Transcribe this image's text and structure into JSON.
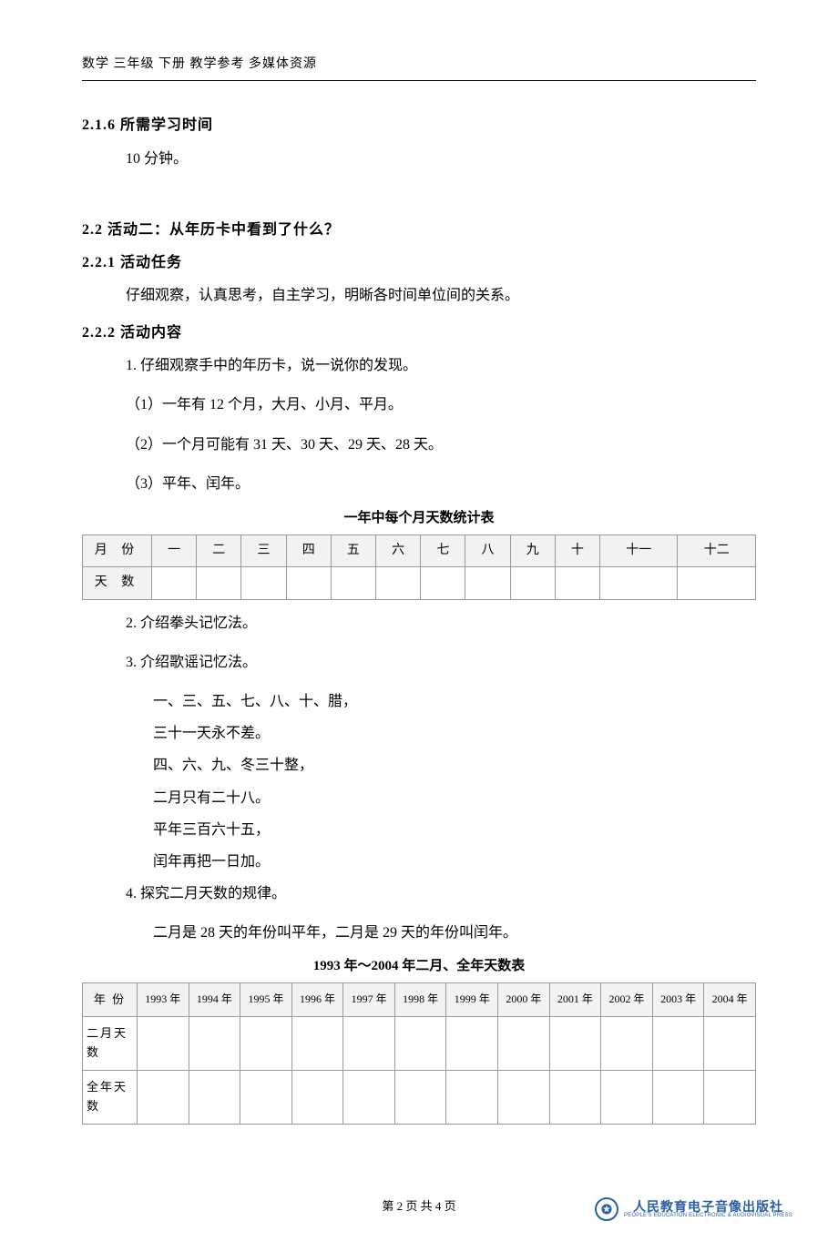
{
  "header": "数学 三年级 下册 教学参考 多媒体资源",
  "s216": {
    "title": "2.1.6 所需学习时间",
    "body": "10 分钟。"
  },
  "s22": {
    "title": "2.2 活动二：从年历卡中看到了什么？"
  },
  "s221": {
    "title": "2.2.1 活动任务",
    "body": "仔细观察，认真思考，自主学习，明晰各时间单位间的关系。"
  },
  "s222": {
    "title": "2.2.2 活动内容",
    "p1": "1. 仔细观察手中的年历卡，说一说你的发现。",
    "p1a": "（1）一年有 12 个月，大月、小月、平月。",
    "p1b": "（2）一个月可能有 31 天、30 天、29 天、28 天。",
    "p1c": "（3）平年、闰年。",
    "table1_title": "一年中每个月天数统计表",
    "table1": {
      "row_labels": [
        "月  份",
        "天  数"
      ],
      "cols": [
        "一",
        "二",
        "三",
        "四",
        "五",
        "六",
        "七",
        "八",
        "九",
        "十",
        "十一",
        "十二"
      ]
    },
    "p2": "2. 介绍拳头记忆法。",
    "p3": "3. 介绍歌谣记忆法。",
    "poem": [
      "一、三、五、七、八、十、腊，",
      "三十一天永不差。",
      "四、六、九、冬三十整，",
      "二月只有二十八。",
      "平年三百六十五，",
      "闰年再把一日加。"
    ],
    "p4": "4. 探究二月天数的规律。",
    "p4a": "二月是 28 天的年份叫平年，二月是 29 天的年份叫闰年。",
    "table2_title": "1993 年～2004 年二月、全年天数表",
    "table2": {
      "head_label": "年    份",
      "years": [
        "1993 年",
        "1994 年",
        "1995 年",
        "1996 年",
        "1997 年",
        "1998 年",
        "1999 年",
        "2000 年",
        "2001 年",
        "2002 年",
        "2003 年",
        "2004 年"
      ],
      "row_labels": [
        "二月天数",
        "全年天数"
      ]
    }
  },
  "footer": {
    "page": "第 2 页 共 4 页"
  },
  "publisher": {
    "cn": "人民教育电子音像出版社",
    "en": "PEOPLE'S EDUCATION ELECTRONIC & AUDIOVISUAL PRESS",
    "logo_text": "✪"
  },
  "colors": {
    "brand": "#2a5fa4",
    "border": "#999999",
    "th_bg": "#f2f2f2",
    "text": "#000000",
    "bg": "#ffffff"
  }
}
